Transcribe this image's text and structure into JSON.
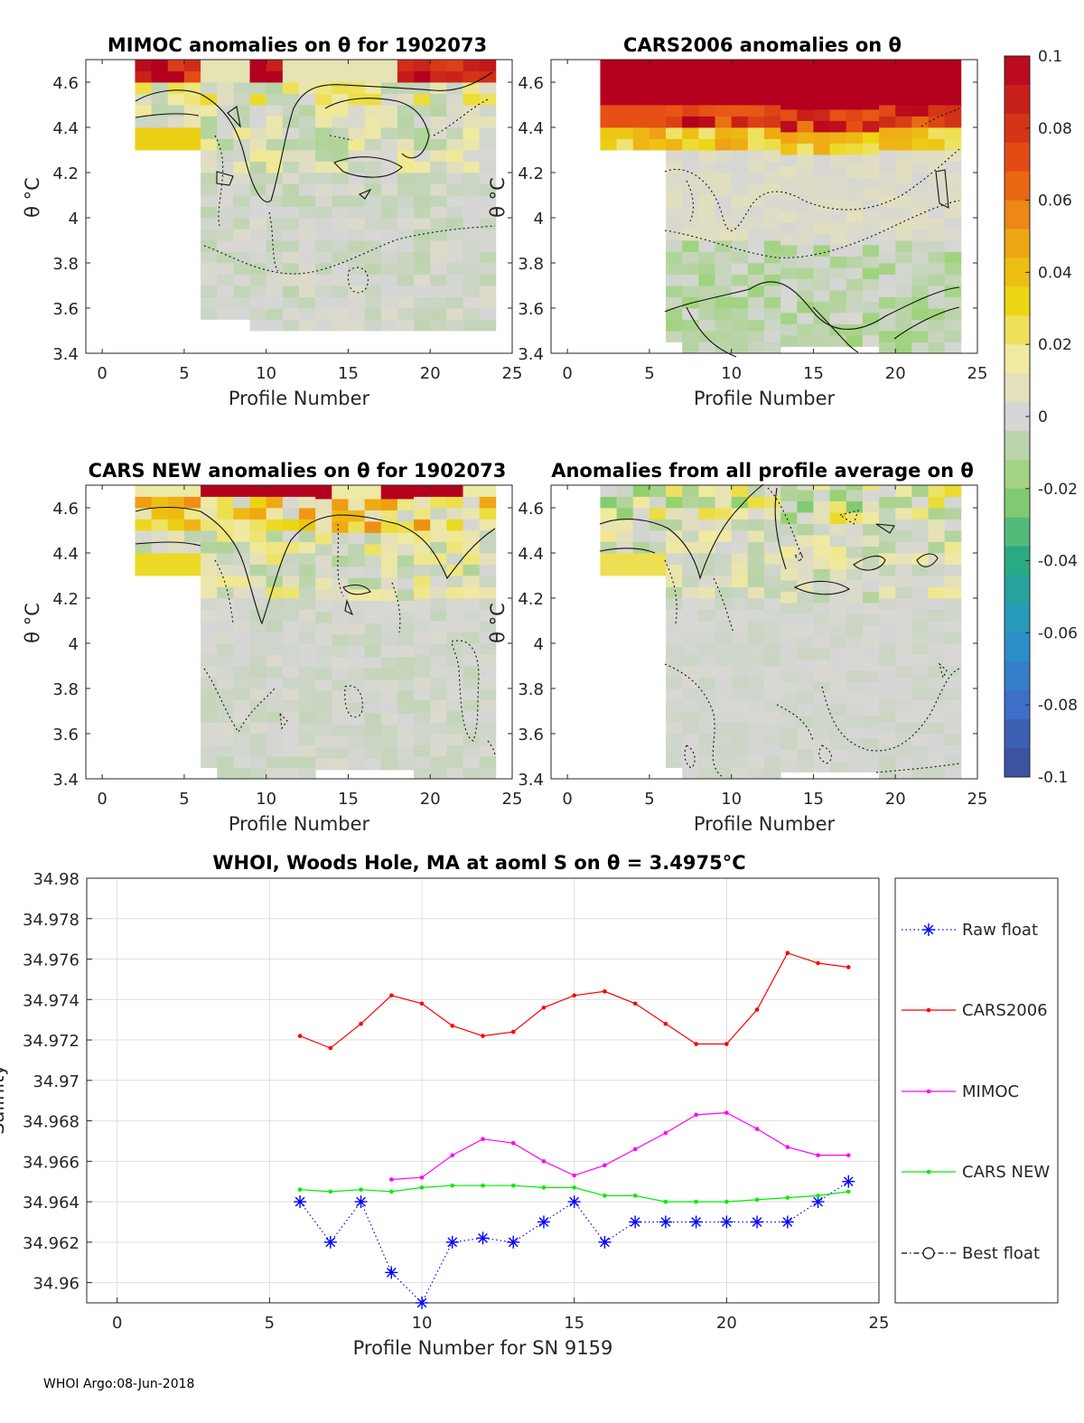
{
  "colorbar": {
    "ticks": [
      "0.1",
      "0.08",
      "0.06",
      "0.04",
      "0.02",
      "0",
      "-0.02",
      "-0.04",
      "-0.06",
      "-0.08",
      "-0.1"
    ],
    "range": [
      -0.1,
      0.1
    ]
  },
  "anomaly_panels": [
    {
      "id": "mimoc",
      "title": "MIMOC anomalies on θ  for 1902073",
      "xlabel": "Profile Number",
      "ylabel": "θ °C",
      "xticks": [
        "0",
        "5",
        "10",
        "15",
        "20",
        "25"
      ],
      "yticks": [
        "4.6",
        "4.4",
        "4.2",
        "4",
        "3.8",
        "3.6",
        "3.4"
      ]
    },
    {
      "id": "cars2006",
      "title": "CARS2006 anomalies on θ",
      "xlabel": "Profile Number",
      "ylabel": "θ °C",
      "xticks": [
        "0",
        "5",
        "10",
        "15",
        "20",
        "25"
      ],
      "yticks": [
        "4.6",
        "4.4",
        "4.2",
        "4",
        "3.8",
        "3.6",
        "3.4"
      ]
    },
    {
      "id": "carsnew",
      "title": "CARS NEW anomalies on θ for 1902073",
      "xlabel": "Profile Number",
      "ylabel": "θ °C",
      "xticks": [
        "0",
        "5",
        "10",
        "15",
        "20",
        "25"
      ],
      "yticks": [
        "4.6",
        "4.4",
        "4.2",
        "4",
        "3.8",
        "3.6",
        "3.4"
      ]
    },
    {
      "id": "allavg",
      "title": "Anomalies from all profile average on θ",
      "xlabel": "Profile Number",
      "ylabel": "θ °C",
      "xticks": [
        "0",
        "5",
        "10",
        "15",
        "20",
        "25"
      ],
      "yticks": [
        "4.6",
        "4.4",
        "4.2",
        "4",
        "3.8",
        "3.6",
        "3.4"
      ]
    }
  ],
  "chart_data": {
    "type": "line",
    "title": "WHOI, Woods Hole, MA at aoml S on θ = 3.4975°C",
    "xlabel": "Profile Number for SN 9159",
    "ylabel": "Salinity",
    "xlim": [
      -1,
      25
    ],
    "ylim": [
      34.959,
      34.98
    ],
    "xticks": [
      0,
      5,
      10,
      15,
      20,
      25
    ],
    "yticks": [
      34.96,
      34.962,
      34.964,
      34.966,
      34.968,
      34.97,
      34.972,
      34.974,
      34.976,
      34.978,
      34.98
    ],
    "ytick_labels": [
      "34.96",
      "34.962",
      "34.964",
      "34.966",
      "34.968",
      "34.97",
      "34.972",
      "34.974",
      "34.976",
      "34.978",
      "34.98"
    ],
    "grid": true,
    "legend_position": "outside-right",
    "series": [
      {
        "name": "Raw float",
        "color": "#0000ff",
        "style": "dotted-star",
        "x": [
          6,
          7,
          8,
          9,
          10,
          11,
          12,
          13,
          14,
          15,
          16,
          17,
          18,
          19,
          20,
          21,
          22,
          23,
          24
        ],
        "values": [
          34.964,
          34.962,
          34.964,
          34.9605,
          34.959,
          34.962,
          34.9622,
          34.962,
          34.963,
          34.964,
          34.962,
          34.963,
          34.963,
          34.963,
          34.963,
          34.963,
          34.963,
          34.964,
          34.965
        ]
      },
      {
        "name": "CARS2006",
        "color": "#ff0000",
        "style": "solid-dot",
        "x": [
          6,
          7,
          8,
          9,
          10,
          11,
          12,
          13,
          14,
          15,
          16,
          17,
          18,
          19,
          20,
          21,
          22,
          23,
          24
        ],
        "values": [
          34.9722,
          34.9716,
          34.9728,
          34.9742,
          34.9738,
          34.9727,
          34.9722,
          34.9724,
          34.9736,
          34.9742,
          34.9744,
          34.9738,
          34.9728,
          34.9718,
          34.9718,
          34.9735,
          34.9763,
          34.9758,
          34.9756
        ]
      },
      {
        "name": "MIMOC",
        "color": "#ff00ff",
        "style": "solid-dot",
        "x": [
          9,
          10,
          11,
          12,
          13,
          14,
          15,
          16,
          17,
          18,
          19,
          20,
          21,
          22,
          23,
          24
        ],
        "values": [
          34.9651,
          34.9652,
          34.9663,
          34.9671,
          34.9669,
          34.966,
          34.9653,
          34.9658,
          34.9666,
          34.9674,
          34.9683,
          34.9684,
          34.9676,
          34.9667,
          34.9663,
          34.9663
        ]
      },
      {
        "name": "CARS NEW",
        "color": "#00ee00",
        "style": "solid-dot",
        "x": [
          6,
          7,
          8,
          9,
          10,
          11,
          12,
          13,
          14,
          15,
          16,
          17,
          18,
          19,
          20,
          21,
          22,
          23,
          24
        ],
        "values": [
          34.9646,
          34.9645,
          34.9646,
          34.9645,
          34.9647,
          34.9648,
          34.9648,
          34.9648,
          34.9647,
          34.9647,
          34.9643,
          34.9643,
          34.964,
          34.964,
          34.964,
          34.9641,
          34.9642,
          34.9643,
          34.9645
        ]
      },
      {
        "name": "Best float",
        "color": "#000000",
        "style": "dashdot-circle",
        "x": [],
        "values": []
      }
    ]
  },
  "footer": "WHOI Argo:08-Jun-2018"
}
